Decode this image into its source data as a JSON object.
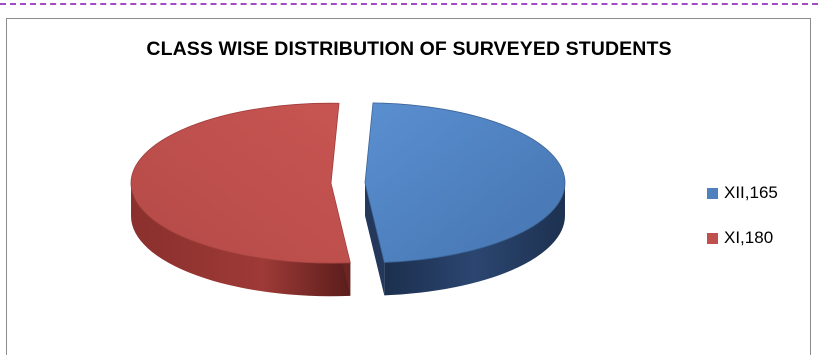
{
  "chart_data": {
    "type": "pie",
    "title": "CLASS WISE DISTRIBUTION OF SURVEYED STUDENTS",
    "slices": [
      {
        "label": "XII,165",
        "category": "XII",
        "value": 165,
        "color": "#4f81bd",
        "side_color": "#23385a"
      },
      {
        "label": "XI,180",
        "category": "XI",
        "value": 180,
        "color": "#c0504d",
        "side_color": "#6b2523"
      }
    ],
    "exploded": true,
    "three_d": true,
    "legend_position": "right"
  }
}
